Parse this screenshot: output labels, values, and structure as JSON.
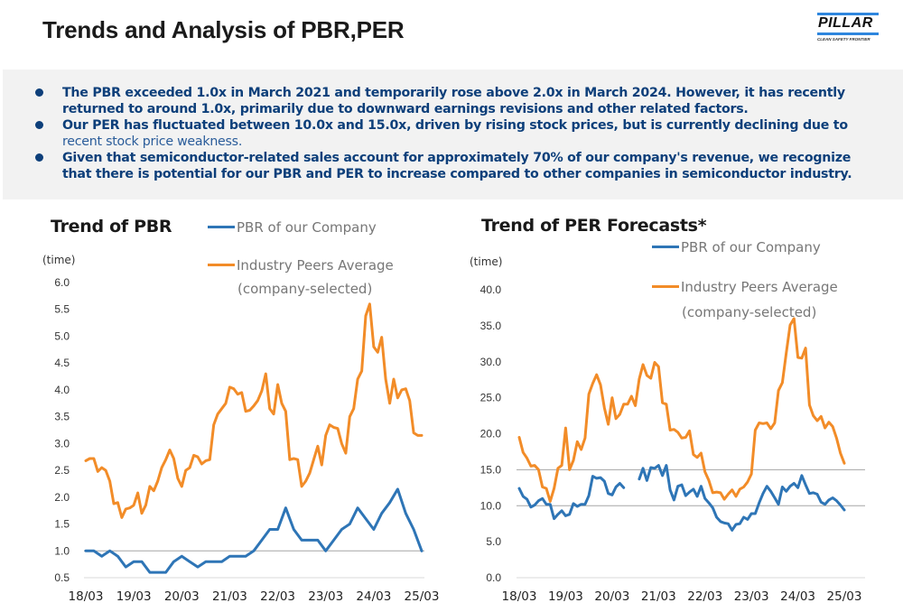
{
  "header": {
    "title": "Trends and Analysis of PBR,PER",
    "logo": {
      "name": "PILLAR",
      "tagline": "CLEAN SAFETY FRONTIER"
    }
  },
  "summary": {
    "bullets": [
      {
        "text": "The PBR exceeded 1.0x in March 2021 and temporarily rose above 2.0x in March 2024. However, it has recently returned to around 1.0x, primarily due to downward earnings revisions and other related factors.",
        "lite": ""
      },
      {
        "text": "Our PER has fluctuated between 10.0x and 15.0x, driven by rising stock prices, but is currently declining due to ",
        "lite": "recent stock price weakness."
      },
      {
        "text": "Given that semiconductor-related sales account for approximately 70% of our company's revenue, we recognize that there is potential for our PBR and PER to increase compared to other companies in semiconductor industry.",
        "lite": ""
      }
    ]
  },
  "colors": {
    "company": "#2e75b6",
    "peers": "#f28c28",
    "summary_text": "#0d3f7a",
    "summary_bg": "#f2f2f2"
  },
  "chart_data": [
    {
      "type": "line",
      "title": "Trend of PBR",
      "ylabel": "(time)",
      "xlabel": "",
      "ylim": [
        0.5,
        6.0
      ],
      "yticks": [
        "6.0",
        "5.5",
        "5.0",
        "4.5",
        "4.0",
        "3.5",
        "3.0",
        "2.5",
        "2.0",
        "1.5",
        "1.0",
        "0.5"
      ],
      "ytick_values": [
        6.0,
        5.5,
        5.0,
        4.5,
        4.0,
        3.5,
        3.0,
        2.5,
        2.0,
        1.5,
        1.0,
        0.5
      ],
      "x_tick_labels": [
        "18/03",
        "19/03",
        "20/03",
        "21/03",
        "22/03",
        "23/03",
        "24/03",
        "25/03"
      ],
      "x_range_months": [
        0,
        84
      ],
      "reference_lines": [
        1.0
      ],
      "legend": {
        "placement": "top-right",
        "entries": [
          "PBR of our Company",
          "Industry Peers Average",
          "(company-selected)"
        ]
      },
      "series": [
        {
          "name": "PBR of our Company",
          "color": "#2e75b6",
          "x": [
            0,
            2,
            4,
            6,
            8,
            10,
            12,
            14,
            16,
            18,
            20,
            22,
            24,
            26,
            28,
            30,
            32,
            34,
            36,
            38,
            40,
            42,
            44,
            46,
            48,
            50,
            52,
            54,
            56,
            58,
            60,
            62,
            64,
            66,
            68,
            70,
            72,
            74,
            76,
            78,
            80,
            82,
            84
          ],
          "values": [
            1.0,
            1.0,
            0.9,
            1.0,
            0.9,
            0.7,
            0.8,
            0.8,
            0.6,
            0.6,
            0.6,
            0.8,
            0.9,
            0.8,
            0.7,
            0.8,
            0.8,
            0.8,
            0.9,
            0.9,
            0.9,
            1.0,
            1.2,
            1.4,
            1.4,
            1.8,
            1.4,
            1.2,
            1.2,
            1.2,
            1.0,
            1.2,
            1.4,
            1.5,
            1.8,
            1.6,
            1.4,
            1.7,
            1.9,
            2.15,
            1.7,
            1.4,
            1.0
          ]
        },
        {
          "name": "Industry Peers Average (company-selected)",
          "color": "#f28c28",
          "x": [
            0,
            1,
            2,
            3,
            4,
            5,
            6,
            7,
            8,
            9,
            10,
            11,
            12,
            13,
            14,
            15,
            16,
            17,
            18,
            19,
            20,
            21,
            22,
            23,
            24,
            25,
            26,
            27,
            28,
            29,
            30,
            31,
            32,
            33,
            34,
            35,
            36,
            37,
            38,
            39,
            40,
            41,
            42,
            43,
            44,
            45,
            46,
            47,
            48,
            49,
            50,
            51,
            52,
            53,
            54,
            55,
            56,
            57,
            58,
            59,
            60,
            61,
            62,
            63,
            64,
            65,
            66,
            67,
            68,
            69,
            70,
            71,
            72,
            73,
            74,
            75,
            76,
            77,
            78,
            79,
            80,
            81,
            82,
            83,
            84
          ],
          "values": [
            2.68,
            2.72,
            2.72,
            2.48,
            2.55,
            2.5,
            2.3,
            1.88,
            1.9,
            1.62,
            1.78,
            1.8,
            1.85,
            2.08,
            1.7,
            1.85,
            2.2,
            2.12,
            2.3,
            2.55,
            2.7,
            2.88,
            2.72,
            2.35,
            2.2,
            2.5,
            2.55,
            2.78,
            2.75,
            2.62,
            2.68,
            2.7,
            3.35,
            3.55,
            3.65,
            3.75,
            4.05,
            4.02,
            3.92,
            3.95,
            3.6,
            3.62,
            3.7,
            3.8,
            3.98,
            4.3,
            3.65,
            3.55,
            4.1,
            3.75,
            3.6,
            2.7,
            2.72,
            2.7,
            2.2,
            2.3,
            2.45,
            2.7,
            2.95,
            2.6,
            3.15,
            3.35,
            3.3,
            3.28,
            3.0,
            2.82,
            3.5,
            3.65,
            4.2,
            4.35,
            5.38,
            5.6,
            4.8,
            4.7,
            4.98,
            4.2,
            3.75,
            4.2,
            3.85,
            4.0,
            4.02,
            3.8,
            3.2,
            3.15,
            3.15
          ]
        }
      ]
    },
    {
      "type": "line",
      "title": "Trend of PER Forecasts*",
      "ylabel": "(time)",
      "xlabel": "",
      "ylim": [
        0.0,
        40.0
      ],
      "yticks": [
        "40.0",
        "35.0",
        "30.0",
        "25.0",
        "20.0",
        "15.0",
        "10.0",
        "5.0",
        "0.0"
      ],
      "ytick_values": [
        40.0,
        35.0,
        30.0,
        25.0,
        20.0,
        15.0,
        10.0,
        5.0,
        0.0
      ],
      "x_tick_labels": [
        "18/03",
        "19/03",
        "20/03",
        "21/03",
        "22/03",
        "23/03",
        "24/03",
        "25/03"
      ],
      "x_range_months": [
        0,
        84
      ],
      "reference_lines": [
        10.0,
        15.0
      ],
      "legend": {
        "placement": "top-right",
        "entries": [
          "PBR of our Company",
          "Industry Peers Average",
          "(company-selected)"
        ]
      },
      "series": [
        {
          "name": "PBR of our Company",
          "color": "#2e75b6",
          "x": [
            0,
            1,
            2,
            3,
            4,
            5,
            6,
            7,
            8,
            9,
            10,
            11,
            12,
            13,
            14,
            15,
            16,
            17,
            18,
            19,
            20,
            21,
            22,
            23,
            24,
            25,
            26,
            27,
            28,
            29,
            null,
            31,
            32,
            33,
            34,
            35,
            36,
            37,
            38,
            39,
            40,
            41,
            42,
            43,
            44,
            45,
            46,
            47,
            48,
            49,
            50,
            51,
            52,
            53,
            54,
            55,
            56,
            57,
            58,
            59,
            60,
            61,
            62,
            63,
            64,
            65,
            66,
            67,
            68,
            69,
            70,
            71,
            72,
            73,
            74,
            75,
            76,
            77,
            78,
            79,
            80,
            81,
            82,
            83,
            84
          ],
          "values": [
            12.4,
            11.3,
            10.9,
            9.8,
            10.1,
            10.7,
            11.0,
            10.2,
            10.2,
            8.2,
            8.8,
            9.3,
            8.6,
            8.8,
            10.3,
            9.9,
            10.2,
            10.2,
            11.4,
            14.1,
            13.8,
            13.9,
            13.4,
            11.7,
            11.5,
            12.6,
            13.1,
            12.5,
            null,
            null,
            null,
            13.7,
            15.2,
            13.5,
            15.3,
            15.2,
            15.6,
            14.2,
            15.6,
            12.2,
            10.8,
            12.7,
            12.9,
            11.4,
            11.9,
            12.3,
            11.3,
            12.7,
            11.0,
            10.4,
            9.7,
            8.4,
            7.8,
            7.6,
            7.5,
            6.6,
            7.4,
            7.5,
            8.4,
            8.1,
            8.9,
            8.9,
            10.4,
            11.7,
            12.7,
            12.0,
            11.1,
            10.2,
            12.6,
            12.0,
            12.7,
            13.1,
            12.5,
            14.2,
            12.9,
            11.7,
            11.8,
            11.6,
            10.5,
            10.2,
            10.8,
            11.1,
            10.7,
            10.1,
            9.4
          ]
        },
        {
          "name": "Industry Peers Average (company-selected)",
          "color": "#f28c28",
          "x": [
            0,
            1,
            2,
            3,
            4,
            5,
            6,
            7,
            8,
            9,
            10,
            11,
            12,
            13,
            14,
            15,
            16,
            17,
            18,
            19,
            20,
            21,
            22,
            23,
            24,
            25,
            26,
            27,
            28,
            29,
            30,
            31,
            32,
            33,
            34,
            35,
            36,
            37,
            38,
            39,
            40,
            41,
            42,
            43,
            44,
            45,
            46,
            47,
            48,
            49,
            50,
            51,
            52,
            53,
            54,
            55,
            56,
            57,
            58,
            59,
            60,
            61,
            62,
            63,
            64,
            65,
            66,
            67,
            68,
            69,
            70,
            71,
            72,
            73,
            74,
            75,
            76,
            77,
            78,
            79,
            80,
            81,
            82,
            83,
            84
          ],
          "values": [
            19.5,
            17.4,
            16.6,
            15.5,
            15.6,
            15.0,
            12.6,
            12.4,
            10.6,
            12.4,
            15.2,
            15.6,
            20.8,
            15.0,
            16.3,
            18.9,
            17.8,
            19.4,
            25.5,
            27.0,
            28.2,
            26.8,
            23.6,
            21.3,
            25.0,
            22.1,
            22.7,
            24.1,
            24.1,
            25.2,
            23.9,
            27.6,
            29.6,
            28.1,
            27.7,
            29.9,
            29.3,
            24.3,
            24.1,
            20.5,
            20.6,
            20.2,
            19.4,
            19.5,
            20.4,
            17.1,
            16.7,
            17.3,
            14.7,
            13.5,
            11.8,
            11.9,
            11.8,
            10.9,
            11.6,
            12.2,
            11.3,
            12.3,
            12.6,
            13.3,
            14.4,
            20.5,
            21.5,
            21.4,
            21.5,
            20.7,
            21.5,
            26.0,
            27.1,
            31.2,
            35.1,
            36.0,
            30.6,
            30.5,
            31.9,
            24.0,
            22.5,
            21.8,
            22.4,
            20.8,
            21.6,
            21.0,
            19.4,
            17.3,
            15.9
          ]
        }
      ]
    }
  ]
}
